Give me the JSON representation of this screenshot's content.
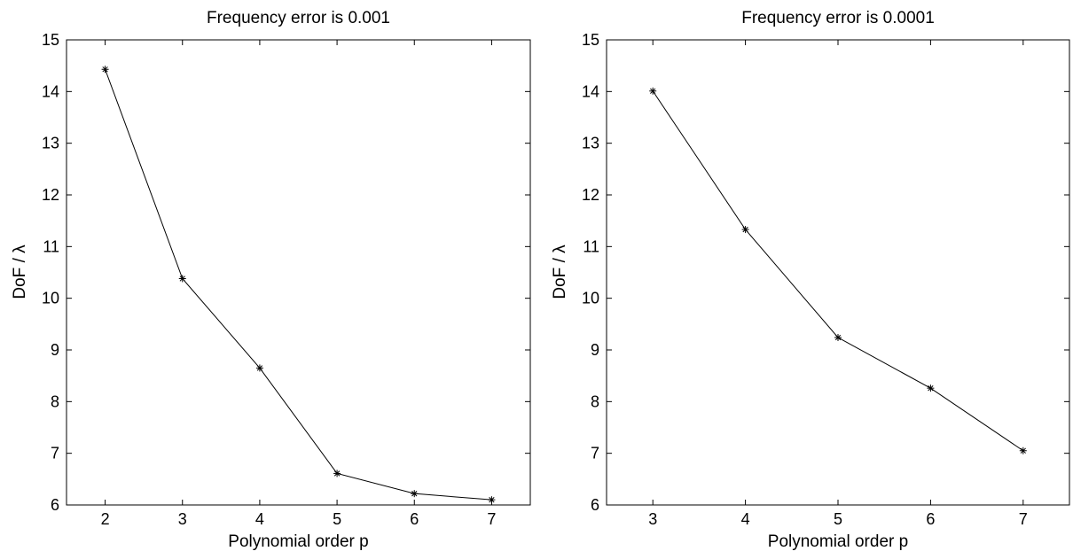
{
  "colors": {
    "line": "#000000",
    "background": "#ffffff"
  },
  "chart_data": [
    {
      "type": "line",
      "title": "Frequency error is 0.001",
      "xlabel": "Polynomial order p",
      "ylabel": "DoF / λ",
      "xlim": [
        1.5,
        7.5
      ],
      "ylim": [
        6,
        15
      ],
      "xticks": [
        2,
        3,
        4,
        5,
        6,
        7
      ],
      "yticks": [
        6,
        7,
        8,
        9,
        10,
        11,
        12,
        13,
        14,
        15
      ],
      "grid": false,
      "marker": "asterisk",
      "x": [
        2,
        3,
        4,
        5,
        6,
        7
      ],
      "y": [
        14.43,
        10.38,
        8.65,
        6.61,
        6.22,
        6.1
      ]
    },
    {
      "type": "line",
      "title": "Frequency error is 0.0001",
      "xlabel": "Polynomial order p",
      "ylabel": "DoF / λ",
      "xlim": [
        2.5,
        7.5
      ],
      "ylim": [
        6,
        15
      ],
      "xticks": [
        3,
        4,
        5,
        6,
        7
      ],
      "yticks": [
        6,
        7,
        8,
        9,
        10,
        11,
        12,
        13,
        14,
        15
      ],
      "grid": false,
      "marker": "asterisk",
      "x": [
        3,
        4,
        5,
        6,
        7
      ],
      "y": [
        14.01,
        11.33,
        9.24,
        8.26,
        7.05
      ]
    }
  ]
}
